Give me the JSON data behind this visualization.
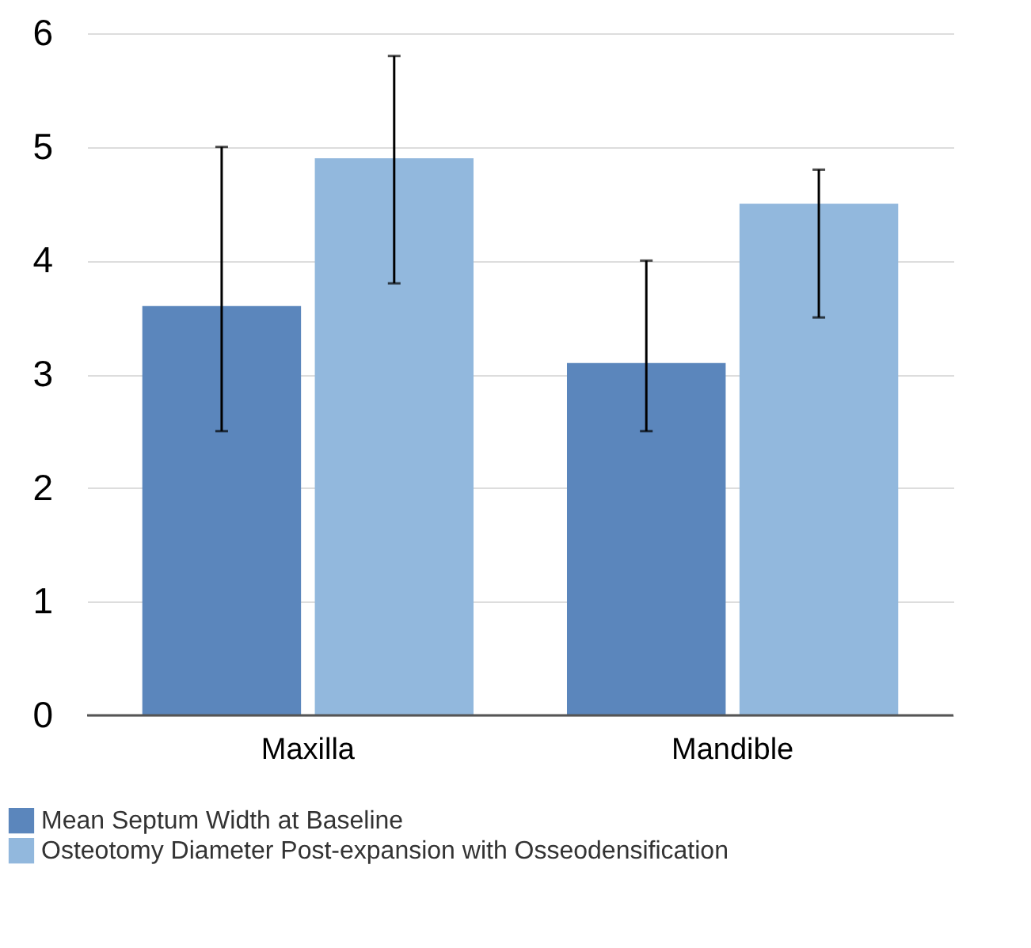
{
  "chart_data": {
    "type": "bar",
    "categories": [
      "Maxilla",
      "Mandible"
    ],
    "series": [
      {
        "name": "Mean Septum Width at Baseline",
        "color": "#5b86bc",
        "values": [
          3.6,
          3.1
        ],
        "errors": [
          [
            2.5,
            5.0
          ],
          [
            2.5,
            4.0
          ]
        ]
      },
      {
        "name": "Osteotomy Diameter Post-expansion with Osseodensification",
        "color": "#92b8dd",
        "values": [
          4.9,
          4.5
        ],
        "errors": [
          [
            3.8,
            5.8
          ],
          [
            3.5,
            4.8
          ]
        ]
      }
    ],
    "ylim": [
      0,
      6
    ],
    "yticks": [
      0,
      1,
      2,
      3,
      4,
      5,
      6
    ],
    "grid": "y",
    "legend": "bottom left"
  }
}
